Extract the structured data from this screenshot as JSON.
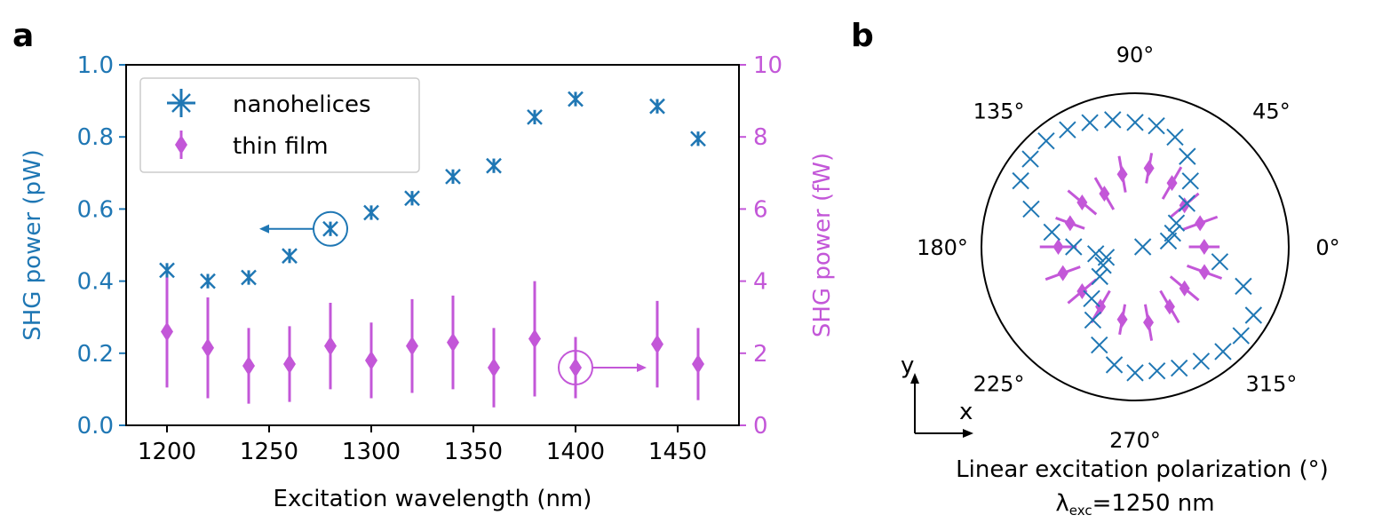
{
  "panel_labels": {
    "a": "a",
    "b": "b"
  },
  "colors": {
    "blue": "#1f77b4",
    "magenta": "#c357d8"
  },
  "chart_data": [
    {
      "type": "scatter",
      "panel": "a",
      "xlabel": "Excitation wavelength (nm)",
      "ylabel_left": "SHG power (pW)",
      "ylabel_right": "SHG power (fW)",
      "xlim": [
        1180,
        1480
      ],
      "ylim_left": [
        0.0,
        1.0
      ],
      "ylim_right": [
        0,
        10
      ],
      "xticks": [
        1200,
        1250,
        1300,
        1350,
        1400,
        1450
      ],
      "xtick_labels": [
        "1200",
        "1250",
        "1300",
        "1350",
        "1400",
        "1450"
      ],
      "yticks_left": [
        0.0,
        0.2,
        0.4,
        0.6,
        0.8,
        1.0
      ],
      "ytick_labels_left": [
        "0.0",
        "0.2",
        "0.4",
        "0.6",
        "0.8",
        "1.0"
      ],
      "yticks_right": [
        0,
        2,
        4,
        6,
        8,
        10
      ],
      "ytick_labels_right": [
        "0",
        "2",
        "4",
        "6",
        "8",
        "10"
      ],
      "legend_location": "upper left",
      "series": [
        {
          "name": "nanohelices",
          "axis": "left",
          "marker": "x-with-errorbar",
          "x": [
            1200,
            1220,
            1240,
            1260,
            1280,
            1300,
            1320,
            1340,
            1360,
            1380,
            1400,
            1440,
            1460
          ],
          "y": [
            0.43,
            0.4,
            0.41,
            0.47,
            0.545,
            0.59,
            0.63,
            0.69,
            0.72,
            0.855,
            0.905,
            0.885,
            0.795
          ],
          "err": [
            0.02,
            0.02,
            0.02,
            0.02,
            0.02,
            0.02,
            0.02,
            0.02,
            0.02,
            0.02,
            0.02,
            0.02,
            0.02
          ]
        },
        {
          "name": "thin film",
          "axis": "right",
          "marker": "diamond-with-errorbar",
          "x": [
            1200,
            1220,
            1240,
            1260,
            1280,
            1300,
            1320,
            1340,
            1360,
            1380,
            1400,
            1440,
            1460
          ],
          "y": [
            2.6,
            2.15,
            1.65,
            1.7,
            2.2,
            1.8,
            2.2,
            2.3,
            1.6,
            2.4,
            1.6,
            2.25,
            1.7
          ],
          "err": [
            1.55,
            1.4,
            1.05,
            1.05,
            1.2,
            1.05,
            1.3,
            1.3,
            1.1,
            1.6,
            0.85,
            1.2,
            1.0
          ]
        }
      ],
      "annotations": [
        {
          "type": "circle-arrow",
          "target_series": "nanohelices",
          "x": 1280,
          "direction": "left"
        },
        {
          "type": "circle-arrow",
          "target_series": "thin film",
          "x": 1400,
          "direction": "right"
        }
      ]
    },
    {
      "type": "polar",
      "panel": "b",
      "xlabel": "Linear excitation polarization (°)",
      "sublabel_prefix": "λ",
      "sublabel_sub": "exc",
      "sublabel_rest": "=1250 nm",
      "angle_labels": [
        "0°",
        "45°",
        "90°",
        "135°",
        "180°",
        "225°",
        "270°",
        "315°"
      ],
      "angle_label_degrees": [
        0,
        45,
        90,
        135,
        180,
        225,
        270,
        315
      ],
      "axes_indicator": {
        "y": "y",
        "x": "x"
      },
      "series": [
        {
          "name": "nanohelices",
          "marker": "x",
          "angles_deg": [
            0,
            10,
            20,
            30,
            40,
            50,
            60,
            70,
            80,
            90,
            100,
            110,
            120,
            130,
            140,
            150,
            160,
            170,
            180,
            190,
            200,
            210,
            220,
            230,
            240,
            250,
            260,
            270,
            280,
            290,
            300,
            310,
            320,
            330,
            340,
            350
          ],
          "r": [
            0.05,
            0.22,
            0.26,
            0.31,
            0.44,
            0.56,
            0.68,
            0.76,
            0.8,
            0.81,
            0.84,
            0.86,
            0.88,
            0.9,
            0.89,
            0.86,
            0.72,
            0.55,
            0.4,
            0.26,
            0.2,
            0.24,
            0.3,
            0.44,
            0.55,
            0.68,
            0.78,
            0.82,
            0.82,
            0.84,
            0.86,
            0.89,
            0.9,
            0.89,
            0.75,
            0.56
          ]
        },
        {
          "name": "thin film",
          "marker": "diamond-with-radial-errorbar",
          "angles_deg": [
            0,
            20,
            40,
            60,
            80,
            100,
            120,
            140,
            160,
            180,
            200,
            220,
            240,
            260,
            280,
            300,
            320,
            340
          ],
          "r": [
            0.45,
            0.45,
            0.42,
            0.48,
            0.52,
            0.48,
            0.4,
            0.45,
            0.45,
            0.5,
            0.5,
            0.45,
            0.45,
            0.48,
            0.5,
            0.45,
            0.42,
            0.48
          ],
          "err": [
            0.1,
            0.12,
            0.12,
            0.12,
            0.1,
            0.12,
            0.12,
            0.12,
            0.1,
            0.12,
            0.12,
            0.12,
            0.12,
            0.1,
            0.12,
            0.12,
            0.12,
            0.12
          ]
        }
      ]
    }
  ]
}
